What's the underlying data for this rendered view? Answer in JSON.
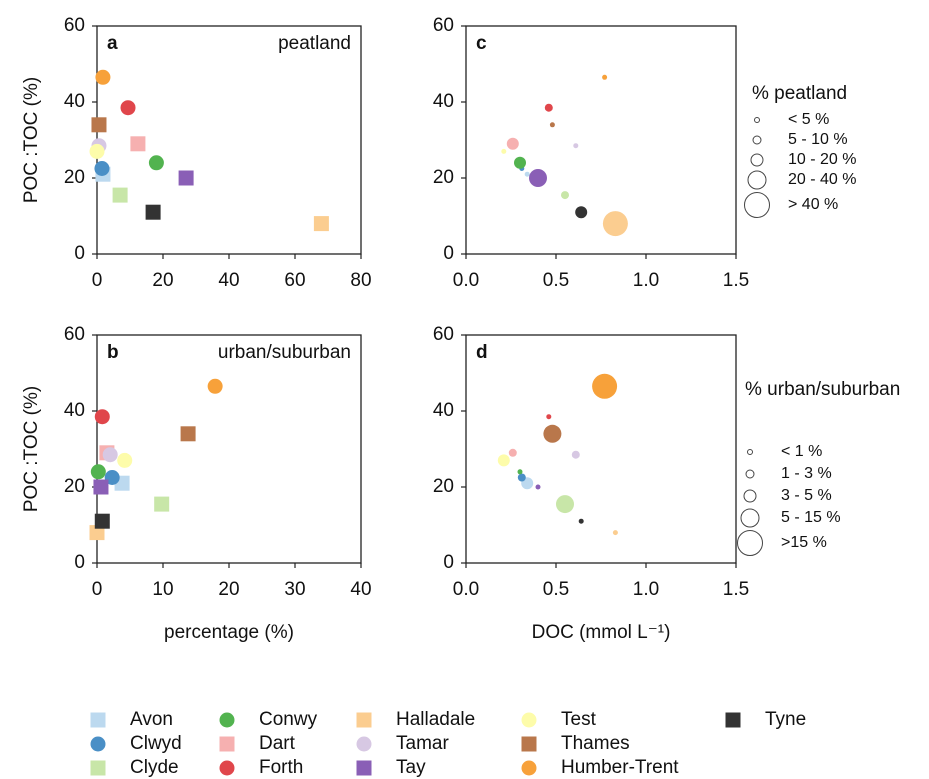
{
  "legend": {
    "items": [
      {
        "name": "Avon",
        "color": "#bcd9ef",
        "marker": "square"
      },
      {
        "name": "Clwyd",
        "color": "#4a8fc6",
        "marker": "circle"
      },
      {
        "name": "Clyde",
        "color": "#c8e6a8",
        "marker": "square"
      },
      {
        "name": "Conwy",
        "color": "#52b34f",
        "marker": "circle"
      },
      {
        "name": "Dart",
        "color": "#f6b0b0",
        "marker": "square"
      },
      {
        "name": "Forth",
        "color": "#e0464b",
        "marker": "circle"
      },
      {
        "name": "Halladale",
        "color": "#fbcd90",
        "marker": "square"
      },
      {
        "name": "Tamar",
        "color": "#d7c8e3",
        "marker": "circle"
      },
      {
        "name": "Tay",
        "color": "#8a5fb6",
        "marker": "square"
      },
      {
        "name": "Test",
        "color": "#fdfcaa",
        "marker": "circle"
      },
      {
        "name": "Thames",
        "color": "#b9774b",
        "marker": "square"
      },
      {
        "name": "Humber-Trent",
        "color": "#f7a13a",
        "marker": "circle"
      },
      {
        "name": "Tyne",
        "color": "#333333",
        "marker": "square"
      }
    ]
  },
  "chart_data": [
    {
      "type": "scatter",
      "panel_label": "a",
      "annotation": "peatland",
      "ylabel": "POC :TOC (%)",
      "xlim": [
        0,
        80
      ],
      "xticks": [
        0,
        20,
        40,
        60,
        80
      ],
      "ylim": [
        0,
        60
      ],
      "yticks": [
        0,
        20,
        40,
        60
      ],
      "series": [
        {
          "x": [
            1.8
          ],
          "values": [
            21
          ]
        },
        {
          "x": [
            1.5
          ],
          "values": [
            22.5
          ]
        },
        {
          "x": [
            7
          ],
          "values": [
            15.5
          ]
        },
        {
          "x": [
            18
          ],
          "values": [
            24
          ]
        },
        {
          "x": [
            12.4
          ],
          "values": [
            29
          ]
        },
        {
          "x": [
            9.4
          ],
          "values": [
            38.5
          ]
        },
        {
          "x": [
            68
          ],
          "values": [
            8
          ]
        },
        {
          "x": [
            0.6
          ],
          "values": [
            28.5
          ]
        },
        {
          "x": [
            27
          ],
          "values": [
            20
          ]
        },
        {
          "x": [
            0
          ],
          "values": [
            27
          ]
        },
        {
          "x": [
            0.6
          ],
          "values": [
            34
          ]
        },
        {
          "x": [
            1.8
          ],
          "values": [
            46.5
          ]
        },
        {
          "x": [
            17
          ],
          "values": [
            11
          ]
        }
      ]
    },
    {
      "type": "scatter",
      "panel_label": "b",
      "annotation": "urban/suburban",
      "ylabel": "POC :TOC (%)",
      "xlabel": "percentage (%)",
      "xlim": [
        0,
        40
      ],
      "xticks": [
        0,
        10,
        20,
        30,
        40
      ],
      "ylim": [
        0,
        60
      ],
      "yticks": [
        0,
        20,
        40,
        60
      ],
      "series": [
        {
          "x": [
            3.8
          ],
          "values": [
            21
          ]
        },
        {
          "x": [
            2.3
          ],
          "values": [
            22.5
          ]
        },
        {
          "x": [
            9.8
          ],
          "values": [
            15.5
          ]
        },
        {
          "x": [
            0.2
          ],
          "values": [
            24
          ]
        },
        {
          "x": [
            1.5
          ],
          "values": [
            29
          ]
        },
        {
          "x": [
            0.8
          ],
          "values": [
            38.5
          ]
        },
        {
          "x": [
            0
          ],
          "values": [
            8
          ]
        },
        {
          "x": [
            2
          ],
          "values": [
            28.5
          ]
        },
        {
          "x": [
            0.6
          ],
          "values": [
            20
          ]
        },
        {
          "x": [
            4.2
          ],
          "values": [
            27
          ]
        },
        {
          "x": [
            13.8
          ],
          "values": [
            34
          ]
        },
        {
          "x": [
            17.9
          ],
          "values": [
            46.5
          ]
        },
        {
          "x": [
            0.8
          ],
          "values": [
            11
          ]
        }
      ]
    },
    {
      "type": "bubble",
      "panel_label": "c",
      "xlim": [
        0,
        1.5
      ],
      "xticks": [
        {
          "value": 0,
          "label": "0.0"
        },
        0.5,
        {
          "value": 1,
          "label": "1.0"
        },
        1.5
      ],
      "ylim": [
        0,
        60
      ],
      "yticks": [
        0,
        20,
        40,
        60
      ],
      "size_title": "% peatland",
      "size_breaks": [
        5,
        10,
        20,
        40
      ],
      "size_labels": [
        "< 5 %",
        "5 - 10 %",
        "10 - 20 %",
        "20 - 40 %",
        "> 40 %"
      ],
      "series": [
        {
          "x": [
            0.34
          ],
          "values": [
            21
          ],
          "sizes": [
            1.8
          ]
        },
        {
          "x": [
            0.31
          ],
          "values": [
            22.5
          ],
          "sizes": [
            1.5
          ]
        },
        {
          "x": [
            0.55
          ],
          "values": [
            15.5
          ],
          "sizes": [
            7
          ]
        },
        {
          "x": [
            0.3
          ],
          "values": [
            24
          ],
          "sizes": [
            18
          ]
        },
        {
          "x": [
            0.26
          ],
          "values": [
            29
          ],
          "sizes": [
            12.4
          ]
        },
        {
          "x": [
            0.46
          ],
          "values": [
            38.5
          ],
          "sizes": [
            9.4
          ]
        },
        {
          "x": [
            0.83
          ],
          "values": [
            8
          ],
          "sizes": [
            68
          ]
        },
        {
          "x": [
            0.61
          ],
          "values": [
            28.5
          ],
          "sizes": [
            0.6
          ]
        },
        {
          "x": [
            0.4
          ],
          "values": [
            20
          ],
          "sizes": [
            27
          ]
        },
        {
          "x": [
            0.21
          ],
          "values": [
            27
          ],
          "sizes": [
            0
          ]
        },
        {
          "x": [
            0.48
          ],
          "values": [
            34
          ],
          "sizes": [
            0.6
          ]
        },
        {
          "x": [
            0.77
          ],
          "values": [
            46.5
          ],
          "sizes": [
            1.8
          ]
        },
        {
          "x": [
            0.64
          ],
          "values": [
            11
          ],
          "sizes": [
            17
          ]
        }
      ]
    },
    {
      "type": "bubble",
      "panel_label": "d",
      "xlabel": "DOC (mmol L⁻¹)",
      "xlim": [
        0,
        1.5
      ],
      "xticks": [
        {
          "value": 0,
          "label": "0.0"
        },
        0.5,
        {
          "value": 1,
          "label": "1.0"
        },
        1.5
      ],
      "ylim": [
        0,
        60
      ],
      "yticks": [
        0,
        20,
        40,
        60
      ],
      "size_title": "% urban/suburban",
      "size_breaks": [
        1,
        3,
        5,
        15
      ],
      "size_labels": [
        "< 1 %",
        "1 - 3 %",
        "3 - 5 %",
        "5 - 15 %",
        ">15 %"
      ],
      "series": [
        {
          "x": [
            0.34
          ],
          "values": [
            21
          ],
          "sizes": [
            3.8
          ]
        },
        {
          "x": [
            0.31
          ],
          "values": [
            22.5
          ],
          "sizes": [
            2.3
          ]
        },
        {
          "x": [
            0.55
          ],
          "values": [
            15.5
          ],
          "sizes": [
            9.8
          ]
        },
        {
          "x": [
            0.3
          ],
          "values": [
            24
          ],
          "sizes": [
            0.2
          ]
        },
        {
          "x": [
            0.26
          ],
          "values": [
            29
          ],
          "sizes": [
            1.5
          ]
        },
        {
          "x": [
            0.46
          ],
          "values": [
            38.5
          ],
          "sizes": [
            0.8
          ]
        },
        {
          "x": [
            0.83
          ],
          "values": [
            8
          ],
          "sizes": [
            0
          ]
        },
        {
          "x": [
            0.61
          ],
          "values": [
            28.5
          ],
          "sizes": [
            2
          ]
        },
        {
          "x": [
            0.4
          ],
          "values": [
            20
          ],
          "sizes": [
            0.6
          ]
        },
        {
          "x": [
            0.21
          ],
          "values": [
            27
          ],
          "sizes": [
            4.2
          ]
        },
        {
          "x": [
            0.48
          ],
          "values": [
            34
          ],
          "sizes": [
            13.8
          ]
        },
        {
          "x": [
            0.77
          ],
          "values": [
            46.5
          ],
          "sizes": [
            17.9
          ]
        },
        {
          "x": [
            0.64
          ],
          "values": [
            11
          ],
          "sizes": [
            0.8
          ]
        }
      ]
    }
  ]
}
